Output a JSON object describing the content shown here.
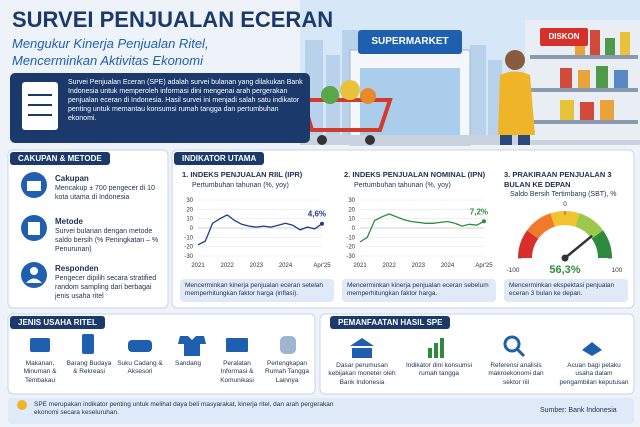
{
  "header": {
    "title": "SURVEI PENJUALAN ECERAN",
    "subtitle": [
      "Mengukur Kinerja Penjualan Ritel,",
      "Mencerminkan Aktivitas Ekonomi"
    ],
    "intro": "Survei Penjualan Eceran (SPE) adalah survei bulanan yang dilakukan Bank Indonesia untuk memperoleh informasi dini mengenai arah pergerakan penjualan eceran di Indonesia. Hasil survei ini menjadi salah satu indikator penting untuk memantau konsumsi rumah tangga dan pertumbuhan ekonomi."
  },
  "illustration": {
    "store_sign": "SUPERMARKET",
    "shelf_sign": "DISKON"
  },
  "coverage": {
    "heading": "CAKUPAN & METODE",
    "items": [
      {
        "title": "Cakupan",
        "text": "Mencakup ± 700 pengecer di 10 kota utama di Indonesia"
      },
      {
        "title": "Metode",
        "text": "Survei bulanan dengan metode saldo bersih (% Peningkatan – % Penurunan)"
      },
      {
        "title": "Responden",
        "text": "Pengecer dipilih secara stratified random sampling dari berbagai jenis usaha ritel"
      }
    ]
  },
  "indicators": {
    "heading": "INDIKATOR UTAMA"
  },
  "chart_data": [
    {
      "type": "line",
      "title": "1. INDEKS PENJUALAN RIIL (IPR)",
      "subtitle": "Pertumbuhan tahunan (%, yoy)",
      "categories": [
        "2021",
        null,
        null,
        null,
        "2022",
        null,
        null,
        null,
        "2023",
        null,
        null,
        null,
        "2024",
        null,
        null,
        null,
        null,
        "Apr'25"
      ],
      "values": [
        -18,
        -14,
        5,
        10,
        14,
        8,
        4,
        2,
        1,
        2,
        1,
        3,
        5,
        3,
        -2,
        1,
        -1,
        4.6
      ],
      "color": "#1f3c88",
      "ylim": [
        -30,
        30
      ],
      "yticks": [
        30,
        20,
        10,
        0,
        -10,
        -20,
        -30
      ],
      "annotation": "4,6%",
      "note": "Mencerminkan kinerja penjualan eceran setelah memperhitungkan faktor harga (inflasi)."
    },
    {
      "type": "line",
      "title": "2. INDEKS PENJUALAN NOMINAL (IPN)",
      "subtitle": "Pertumbuhan tahunan (%, yoy)",
      "categories": [
        "2021",
        null,
        null,
        null,
        "2022",
        null,
        null,
        null,
        "2023",
        null,
        null,
        null,
        "2024",
        null,
        null,
        null,
        null,
        "Apr'25"
      ],
      "values": [
        -15,
        -10,
        8,
        12,
        15,
        12,
        9,
        7,
        6,
        5,
        5,
        6,
        7,
        5,
        2,
        4,
        3,
        7.2
      ],
      "color": "#2e8b3e",
      "ylim": [
        -30,
        30
      ],
      "yticks": [
        30,
        20,
        10,
        0,
        -10,
        -20,
        -30
      ],
      "annotation": "7,2%",
      "note": "Mencerminkan kinerja penjualan eceran sebelum memperhitungkan faktor harga."
    },
    {
      "type": "gauge",
      "title": "3. PRAKIRAAN PENJUALAN 3 BULAN KE DEPAN",
      "subtitle": "Saldo Bersih Tertimbang (SBT), %",
      "value": 56.3,
      "value_label": "56,3%",
      "color": "#2e8b3e",
      "xlim": [
        -100,
        100
      ],
      "xticks": [
        -100,
        0,
        100
      ],
      "note": "Mencerminkan ekspektasi penjualan eceran 3 bulan ke depan."
    }
  ],
  "retail_types": {
    "heading": "JENIS USAHA RITEL",
    "items": [
      "Makanan, Minuman & Tembakau",
      "Barang Budaya & Rekreasi",
      "Suku Cadang & Aksesori",
      "Sandang",
      "Peralatan Informasi & Komunikasi",
      "Perlengkapan Rumah Tangga Lainnya"
    ]
  },
  "uses": {
    "heading": "PEMANFAATAN HASIL SPE",
    "items": [
      "Dasar perumusan kebijakan moneter oleh Bank Indonesia",
      "Indikator dini konsumsi rumah tangga",
      "Referensi analisis makroekonomi dan sektor riil",
      "Acuan bagi pelaku usaha dalam pengambilan keputusan"
    ]
  },
  "footer": {
    "text": "SPE merupakan indikator penting untuk melihat daya beli masyarakat, kinerja ritel, dan arah pergerakan ekonomi secara keseluruhan.",
    "source": "Sumber: Bank Indonesia"
  }
}
